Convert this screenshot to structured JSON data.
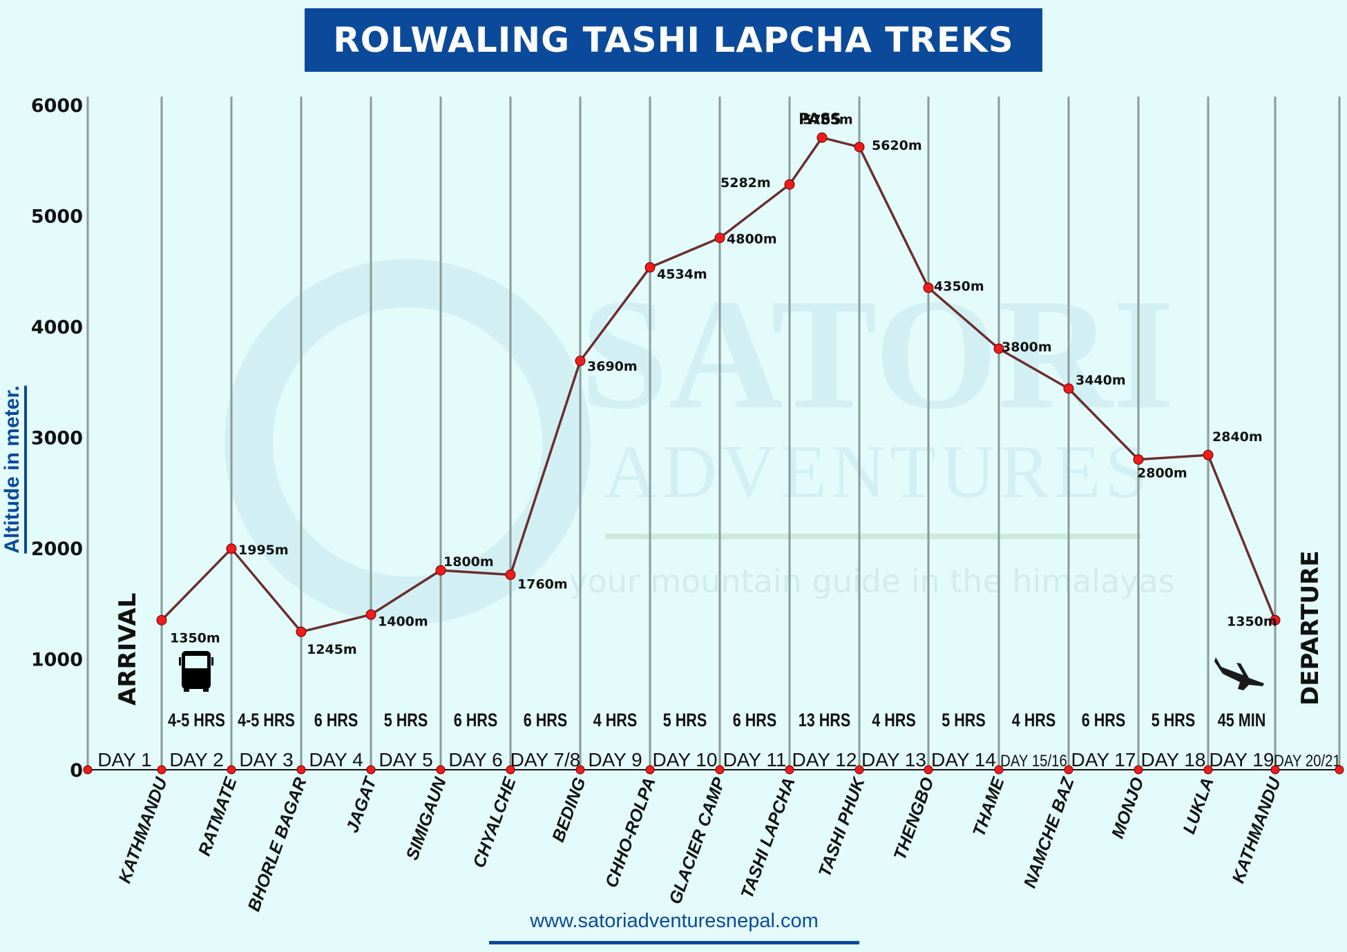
{
  "header": {
    "title": "ROLWALING TASHI LAPCHA TREKS"
  },
  "y_axis": {
    "label": "Altitude in meter.",
    "ticks": [
      "0",
      "1000",
      "2000",
      "3000",
      "4000",
      "5000",
      "6000"
    ]
  },
  "annotations": {
    "arrival": "ARRIVAL",
    "departure": "DEPARTURE",
    "pass": "PASS",
    "bus_icon": "bus-icon",
    "plane_icon": "airplane-icon"
  },
  "footer": {
    "url": "www.satoriadventuresnepal.com"
  },
  "watermark": {
    "brand": "SATORI",
    "sub": "ADVENTURES",
    "tagline": "your mountain guide in the himalayas"
  },
  "colors": {
    "title_bg": "#0b4a9a",
    "line": "#6b2e2e",
    "marker": "#ee1c1c",
    "grid": "#8a9a9a",
    "background": "#e3fbfb"
  },
  "days": [
    "DAY 1",
    "DAY 2",
    "DAY 3",
    "DAY 4",
    "DAY 5",
    "DAY 6",
    "DAY 7/8",
    "DAY 9",
    "DAY 10",
    "DAY 11",
    "DAY 12",
    "DAY 13",
    "DAY 14",
    "DAY 15/16",
    "DAY 17",
    "DAY 18",
    "DAY 19",
    "DAY 20/21"
  ],
  "durations": [
    "4-5 HRS",
    "4-5 HRS",
    "6 HRS",
    "5 HRS",
    "6 HRS",
    "6  HRS",
    "4 HRS",
    "5 HRS",
    "6 HRS",
    "13 HRS",
    "4 HRS",
    "5 HRS",
    "4 HRS",
    "6 HRS",
    "5 HRS",
    "45 MIN"
  ],
  "chart_data": {
    "type": "line",
    "title": "ROLWALING TASHI LAPCHA TREKS",
    "xlabel": "",
    "ylabel": "Altitude in meter.",
    "ylim": [
      0,
      6000
    ],
    "yticks": [
      0,
      1000,
      2000,
      3000,
      4000,
      5000,
      6000
    ],
    "grid": "vertical lines per stop",
    "categories": [
      "KATHMANDU",
      "RATMATE",
      "BHORLE BAGAR",
      "JAGAT",
      "SIMIGAUN",
      "CHYALCHE",
      "BEDING",
      "CHHO-ROLPA",
      "GLACIER CAMP",
      "TASHI LAPCHA",
      "TASHI PHUK",
      "THENGBO",
      "THAME",
      "NAMCHE BAZ",
      "MONJO",
      "LUKLA",
      "KATHMANDU"
    ],
    "series": [
      {
        "name": "Altitude",
        "values": [
          1350,
          1995,
          1245,
          1400,
          1800,
          1760,
          3690,
          4534,
          4800,
          5282,
          5705,
          5620,
          4350,
          3800,
          3440,
          2800,
          2840,
          1350
        ]
      }
    ],
    "point_labels": [
      "1350m",
      "1995m",
      "1245m",
      "1400m",
      "1800m",
      "1760m",
      "3690m",
      "4534m",
      "4800m",
      "5282m",
      "5705m",
      "5620m",
      "4350m",
      "3800m",
      "3440m",
      "2800m",
      "2840m",
      "1350m"
    ],
    "notes": "Point 5705m (PASS) lies between TASHI LAPCHA and TASHI PHUK; 18 altitude points over 17 stops"
  }
}
